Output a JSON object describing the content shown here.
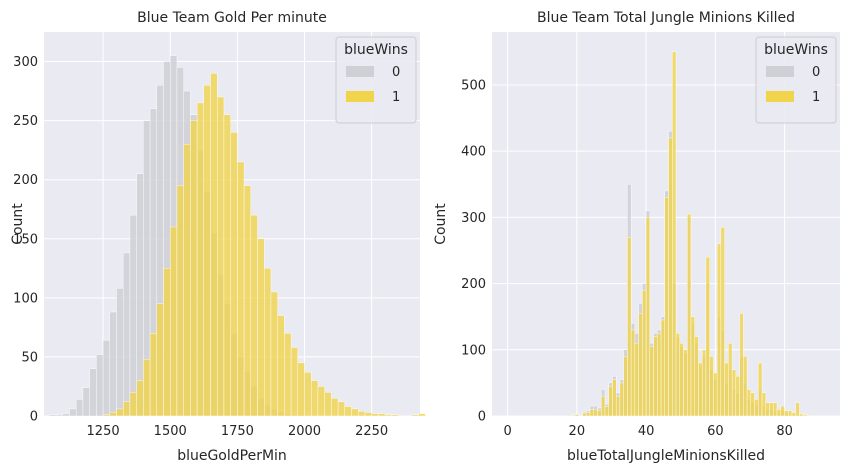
{
  "chart_data": [
    {
      "type": "histogram",
      "title": "Blue Team Gold Per minute",
      "xlabel": "blueGoldPerMin",
      "ylabel": "Count",
      "xlim": [
        1030,
        2430
      ],
      "ylim": [
        0,
        325
      ],
      "xticks": [
        "1250",
        "1500",
        "1750",
        "2000",
        "2250"
      ],
      "yticks": [
        "0",
        "50",
        "100",
        "150",
        "200",
        "250",
        "300"
      ],
      "bin_width": 25,
      "legend": {
        "title": "blueWins",
        "position": "upper right"
      },
      "series": [
        {
          "name": "0",
          "color": "#cfcfd6",
          "bins_start": 1050,
          "values": [
            1,
            1,
            2,
            6,
            14,
            24,
            40,
            52,
            64,
            88,
            108,
            138,
            170,
            205,
            250,
            260,
            280,
            300,
            305,
            295,
            275,
            255,
            225,
            190,
            155,
            120,
            95,
            70,
            50,
            38,
            25,
            15,
            10,
            6,
            4,
            2,
            1,
            1,
            0,
            0,
            0,
            0,
            0,
            0,
            0,
            0,
            0,
            0,
            0,
            0,
            0,
            0,
            0,
            0,
            0,
            0
          ]
        },
        {
          "name": "1",
          "color": "#f0d54c",
          "bins_start": 1050,
          "values": [
            0,
            0,
            0,
            0,
            0,
            0,
            0,
            0,
            1,
            3,
            6,
            12,
            20,
            30,
            48,
            70,
            95,
            125,
            160,
            195,
            230,
            250,
            265,
            280,
            290,
            270,
            255,
            240,
            215,
            195,
            170,
            150,
            125,
            105,
            85,
            70,
            58,
            45,
            37,
            30,
            25,
            20,
            15,
            12,
            8,
            6,
            4,
            3,
            2,
            2,
            1,
            1,
            0,
            0,
            1,
            2
          ]
        }
      ]
    },
    {
      "type": "histogram",
      "title": "Blue Team Total Jungle Minions Killed",
      "xlabel": "blueTotalJungleMinionsKilled",
      "ylabel": "Count",
      "xlim": [
        -4.5,
        96
      ],
      "ylim": [
        0,
        580
      ],
      "xticks": [
        "0",
        "20",
        "40",
        "60",
        "80"
      ],
      "yticks": [
        "0",
        "100",
        "200",
        "300",
        "400",
        "500"
      ],
      "bin_width": 1.08,
      "legend": {
        "title": "blueWins",
        "position": "upper right"
      },
      "series": [
        {
          "name": "0",
          "color": "#cfcfd6",
          "bins_start": 13,
          "values": [
            1,
            1,
            1,
            1,
            1,
            2,
            3,
            1,
            6,
            8,
            15,
            15,
            12,
            40,
            18,
            50,
            60,
            35,
            55,
            100,
            350,
            140,
            125,
            170,
            200,
            310,
            110,
            125,
            130,
            150,
            340,
            430,
            200,
            120,
            105,
            95,
            300,
            140,
            110,
            75,
            90,
            200,
            70,
            55,
            150,
            130,
            50,
            70,
            40,
            35,
            90,
            50,
            25,
            20,
            15,
            40,
            15,
            10,
            10,
            8,
            5,
            8,
            4,
            3,
            2,
            2,
            1,
            1,
            1
          ]
        },
        {
          "name": "1",
          "color": "#f0d54c",
          "bins_start": 13,
          "values": [
            0,
            0,
            0,
            0,
            0,
            1,
            2,
            1,
            4,
            5,
            10,
            10,
            8,
            30,
            14,
            45,
            55,
            30,
            50,
            90,
            270,
            130,
            110,
            155,
            190,
            300,
            105,
            120,
            125,
            145,
            330,
            420,
            550,
            125,
            110,
            100,
            305,
            150,
            120,
            80,
            100,
            240,
            90,
            65,
            260,
            285,
            80,
            110,
            70,
            60,
            155,
            90,
            40,
            35,
            25,
            80,
            35,
            20,
            20,
            20,
            10,
            15,
            8,
            8,
            5,
            20,
            3,
            2,
            1
          ]
        }
      ]
    }
  ]
}
